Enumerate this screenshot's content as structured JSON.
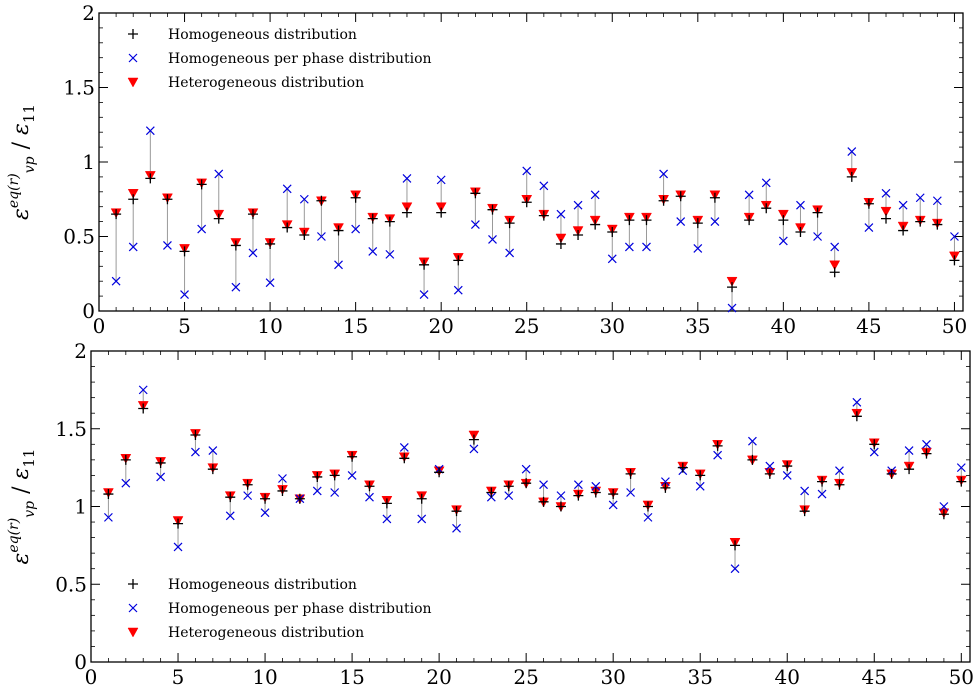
{
  "chart_data": [
    {
      "type": "scatter",
      "title": "",
      "xlabel": "",
      "ylabel": "ε̄(r)eq/vp / ε̄11",
      "ylabel_parts": {
        "main": "ε",
        "sup": "eq",
        "sup2": "(r)",
        "sub": "vp",
        "sep": " / ",
        "den": "ε",
        "den_sub": "11"
      },
      "xlim": [
        0,
        50.5
      ],
      "ylim": [
        0,
        2
      ],
      "xticks": [
        0,
        5,
        10,
        15,
        20,
        25,
        30,
        35,
        40,
        45,
        50
      ],
      "yticks": [
        0,
        0.5,
        1,
        1.5,
        2
      ],
      "ytick_labels": [
        "0",
        "0.5",
        "1",
        "1.5",
        "2"
      ],
      "legend_position": "top-left",
      "x": [
        1,
        2,
        3,
        4,
        5,
        6,
        7,
        8,
        9,
        10,
        11,
        12,
        13,
        14,
        15,
        16,
        17,
        18,
        19,
        20,
        21,
        22,
        23,
        24,
        25,
        26,
        27,
        28,
        29,
        30,
        31,
        32,
        33,
        34,
        35,
        36,
        37,
        38,
        39,
        40,
        41,
        42,
        43,
        44,
        45,
        46,
        47,
        48,
        49,
        50
      ],
      "series": [
        {
          "name": "Homogeneous distribution",
          "marker": "plus",
          "color": "#000000",
          "values": [
            0.65,
            0.75,
            0.89,
            0.75,
            0.4,
            0.85,
            0.62,
            0.44,
            0.65,
            0.45,
            0.56,
            0.51,
            0.74,
            0.54,
            0.76,
            0.62,
            0.6,
            0.66,
            0.31,
            0.66,
            0.34,
            0.79,
            0.68,
            0.59,
            0.73,
            0.64,
            0.45,
            0.51,
            0.58,
            0.53,
            0.61,
            0.61,
            0.74,
            0.77,
            0.59,
            0.76,
            0.16,
            0.61,
            0.69,
            0.61,
            0.53,
            0.66,
            0.26,
            0.9,
            0.72,
            0.62,
            0.54,
            0.6,
            0.58,
            0.34
          ]
        },
        {
          "name": "Homogeneous per phase distribution",
          "marker": "x",
          "color": "#0000dd",
          "values": [
            0.2,
            0.43,
            1.21,
            0.44,
            0.11,
            0.55,
            0.92,
            0.16,
            0.39,
            0.19,
            0.82,
            0.75,
            0.5,
            0.31,
            0.55,
            0.4,
            0.38,
            0.89,
            0.11,
            0.88,
            0.14,
            0.58,
            0.48,
            0.39,
            0.94,
            0.84,
            0.65,
            0.71,
            0.78,
            0.35,
            0.43,
            0.43,
            0.92,
            0.6,
            0.42,
            0.6,
            0.02,
            0.78,
            0.86,
            0.47,
            0.71,
            0.5,
            0.43,
            1.07,
            0.56,
            0.79,
            0.71,
            0.76,
            0.74,
            0.5
          ]
        },
        {
          "name": "Heterogeneous distribution",
          "marker": "triangle-down",
          "color": "#ff0000",
          "values": [
            0.66,
            0.79,
            0.91,
            0.76,
            0.42,
            0.86,
            0.65,
            0.46,
            0.66,
            0.46,
            0.58,
            0.53,
            0.74,
            0.56,
            0.78,
            0.63,
            0.62,
            0.7,
            0.33,
            0.7,
            0.36,
            0.8,
            0.69,
            0.61,
            0.75,
            0.65,
            0.49,
            0.54,
            0.61,
            0.55,
            0.63,
            0.63,
            0.75,
            0.78,
            0.61,
            0.78,
            0.2,
            0.63,
            0.71,
            0.65,
            0.56,
            0.68,
            0.31,
            0.93,
            0.73,
            0.67,
            0.57,
            0.61,
            0.59,
            0.37
          ]
        }
      ]
    },
    {
      "type": "scatter",
      "title": "",
      "xlabel": "",
      "ylabel": "ε̄(r)eq/vp / ε̄11",
      "ylabel_parts": {
        "main": "ε",
        "sup": "eq",
        "sup2": "(r)",
        "sub": "vp",
        "sep": " / ",
        "den": "ε",
        "den_sub": "11"
      },
      "xlim": [
        0,
        50.5
      ],
      "ylim": [
        0,
        2
      ],
      "xticks": [
        0,
        5,
        10,
        15,
        20,
        25,
        30,
        35,
        40,
        45,
        50
      ],
      "yticks": [
        0,
        0.5,
        1,
        1.5,
        2
      ],
      "ytick_labels": [
        "0",
        "0.5",
        "1",
        "1.5",
        "2"
      ],
      "legend_position": "bottom-left",
      "x": [
        1,
        2,
        3,
        4,
        5,
        6,
        7,
        8,
        9,
        10,
        11,
        12,
        13,
        14,
        15,
        16,
        17,
        18,
        19,
        20,
        21,
        22,
        23,
        24,
        25,
        26,
        27,
        28,
        29,
        30,
        31,
        32,
        33,
        34,
        35,
        36,
        37,
        38,
        39,
        40,
        41,
        42,
        43,
        44,
        45,
        46,
        47,
        48,
        49,
        50
      ],
      "series": [
        {
          "name": "Homogeneous distribution",
          "marker": "plus",
          "color": "#000000",
          "values": [
            1.08,
            1.3,
            1.63,
            1.28,
            0.89,
            1.46,
            1.24,
            1.06,
            1.14,
            1.05,
            1.1,
            1.05,
            1.19,
            1.2,
            1.32,
            1.13,
            1.02,
            1.31,
            1.05,
            1.22,
            0.97,
            1.43,
            1.09,
            1.13,
            1.15,
            1.03,
            1.0,
            1.07,
            1.09,
            1.08,
            1.21,
            1.0,
            1.12,
            1.25,
            1.2,
            1.39,
            0.75,
            1.3,
            1.21,
            1.26,
            0.97,
            1.16,
            1.14,
            1.58,
            1.4,
            1.21,
            1.24,
            1.34,
            0.95,
            1.16
          ]
        },
        {
          "name": "Homogeneous per phase distribution",
          "marker": "x",
          "color": "#0000dd",
          "values": [
            0.93,
            1.15,
            1.75,
            1.19,
            0.74,
            1.35,
            1.36,
            0.94,
            1.07,
            0.96,
            1.18,
            1.05,
            1.1,
            1.09,
            1.2,
            1.06,
            0.92,
            1.38,
            0.92,
            1.24,
            0.86,
            1.37,
            1.06,
            1.07,
            1.24,
            1.14,
            1.07,
            1.14,
            1.13,
            1.01,
            1.09,
            0.93,
            1.16,
            1.23,
            1.13,
            1.33,
            0.6,
            1.42,
            1.26,
            1.2,
            1.1,
            1.08,
            1.23,
            1.67,
            1.35,
            1.23,
            1.36,
            1.4,
            1.0,
            1.25
          ]
        },
        {
          "name": "Heterogeneous distribution",
          "marker": "triangle-down",
          "color": "#ff0000",
          "values": [
            1.09,
            1.31,
            1.65,
            1.29,
            0.91,
            1.47,
            1.25,
            1.07,
            1.15,
            1.06,
            1.11,
            1.05,
            1.2,
            1.21,
            1.33,
            1.14,
            1.04,
            1.32,
            1.07,
            1.23,
            0.98,
            1.46,
            1.1,
            1.14,
            1.15,
            1.03,
            1.0,
            1.08,
            1.1,
            1.09,
            1.22,
            1.01,
            1.13,
            1.26,
            1.21,
            1.4,
            0.77,
            1.3,
            1.22,
            1.27,
            0.98,
            1.17,
            1.15,
            1.6,
            1.41,
            1.21,
            1.26,
            1.35,
            0.96,
            1.17
          ]
        }
      ]
    }
  ]
}
